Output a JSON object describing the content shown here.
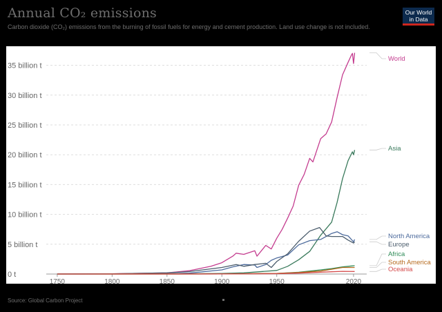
{
  "header": {
    "title": "Annual CO₂ emissions",
    "subtitle": "Carbon dioxide (CO₂) emissions from the burning of fossil fuels for energy and cement production. Land use change is not included."
  },
  "logo": {
    "line1": "Our World",
    "line2": "in Data",
    "bg_color": "#0c2a4d",
    "accent_color": "#ce261e"
  },
  "footer": {
    "source": "Source: Global Carbon Project"
  },
  "chart_data": {
    "type": "line",
    "title": "Annual CO₂ emissions",
    "xlim": [
      1740,
      2032
    ],
    "ylim": [
      0,
      37500000000
    ],
    "grid": "horizontal-dashed",
    "x_ticks": [
      1750,
      1800,
      1850,
      1900,
      1950,
      2020
    ],
    "y_ticks": [
      {
        "value": 0,
        "label": "0 t"
      },
      {
        "value": 5000000000,
        "label": "5 billion t"
      },
      {
        "value": 10000000000,
        "label": "10 billion t"
      },
      {
        "value": 15000000000,
        "label": "15 billion t"
      },
      {
        "value": 20000000000,
        "label": "20 billion t"
      },
      {
        "value": 25000000000,
        "label": "25 billion t"
      },
      {
        "value": 30000000000,
        "label": "30 billion t"
      },
      {
        "value": 35000000000,
        "label": "35 billion t"
      }
    ],
    "series": [
      {
        "name": "World",
        "color": "#c43c8f",
        "x": [
          1750,
          1800,
          1850,
          1870,
          1890,
          1900,
          1910,
          1913,
          1920,
          1930,
          1932,
          1940,
          1945,
          1950,
          1955,
          1960,
          1965,
          1970,
          1975,
          1980,
          1983,
          1990,
          1995,
          2000,
          2005,
          2010,
          2015,
          2018,
          2019,
          2020,
          2021
        ],
        "values": [
          10000000.0,
          30000000.0,
          200000000.0,
          550000000.0,
          1300000000.0,
          1900000000.0,
          3000000000.0,
          3500000000.0,
          3300000000.0,
          3900000000.0,
          3000000000.0,
          4800000000.0,
          4200000000.0,
          6000000000.0,
          7500000000.0,
          9400000000.0,
          11400000000.0,
          14900000000.0,
          16700000000.0,
          19400000000.0,
          18800000000.0,
          22700000000.0,
          23500000000.0,
          25500000000.0,
          29600000000.0,
          33400000000.0,
          35500000000.0,
          36700000000.0,
          37000000000.0,
          35300000000.0,
          37100000000.0
        ]
      },
      {
        "name": "Asia",
        "color": "#3a7a5c",
        "x": [
          1750,
          1850,
          1900,
          1920,
          1950,
          1960,
          1970,
          1980,
          1990,
          2000,
          2005,
          2010,
          2015,
          2019,
          2020,
          2021
        ],
        "values": [
          0,
          10000000.0,
          100000000.0,
          200000000.0,
          600000000.0,
          1300000000.0,
          2400000000.0,
          3800000000.0,
          6500000000.0,
          8700000000.0,
          12000000000.0,
          16000000000.0,
          19000000000.0,
          20500000000.0,
          20000000000.0,
          20800000000.0
        ]
      },
      {
        "name": "North America",
        "color": "#4c6a9c",
        "x": [
          1750,
          1850,
          1870,
          1900,
          1910,
          1920,
          1930,
          1932,
          1940,
          1945,
          1950,
          1960,
          1970,
          1980,
          1990,
          2000,
          2005,
          2010,
          2015,
          2020,
          2021
        ],
        "values": [
          0,
          50000000.0,
          150000000.0,
          700000000.0,
          1200000000.0,
          1600000000.0,
          1500000000.0,
          1100000000.0,
          1600000000.0,
          2300000000.0,
          2700000000.0,
          3200000000.0,
          4900000000.0,
          5600000000.0,
          5800000000.0,
          6800000000.0,
          7100000000.0,
          6600000000.0,
          6400000000.0,
          5400000000.0,
          5800000000.0
        ]
      },
      {
        "name": "Europe",
        "color": "#4a5b6b",
        "x": [
          1750,
          1800,
          1850,
          1870,
          1900,
          1913,
          1920,
          1930,
          1940,
          1945,
          1950,
          1960,
          1970,
          1980,
          1989,
          1995,
          2000,
          2010,
          2015,
          2020,
          2021
        ],
        "values": [
          10000000.0,
          30000000.0,
          200000000.0,
          400000000.0,
          1100000000.0,
          1600000000.0,
          1300000000.0,
          1600000000.0,
          1800000000.0,
          1100000000.0,
          2100000000.0,
          3400000000.0,
          5500000000.0,
          7200000000.0,
          7800000000.0,
          6400000000.0,
          6300000000.0,
          6300000000.0,
          5700000000.0,
          5200000000.0,
          5400000000.0
        ]
      },
      {
        "name": "Africa",
        "color": "#2e8b57",
        "x": [
          1750,
          1900,
          1950,
          1970,
          1990,
          2000,
          2010,
          2021
        ],
        "values": [
          0,
          10000000.0,
          100000000.0,
          300000000.0,
          700000000.0,
          900000000.0,
          1200000000.0,
          1400000000.0
        ]
      },
      {
        "name": "South America",
        "color": "#b66b1f",
        "x": [
          1750,
          1900,
          1950,
          1970,
          1990,
          2000,
          2010,
          2021
        ],
        "values": [
          0,
          10000000.0,
          100000000.0,
          250000000.0,
          500000000.0,
          800000000.0,
          1100000000.0,
          1100000000.0
        ]
      },
      {
        "name": "Oceania",
        "color": "#d44a4a",
        "x": [
          1750,
          1900,
          1950,
          1970,
          1990,
          2000,
          2010,
          2021
        ],
        "values": [
          0,
          10000000.0,
          60000000.0,
          150000000.0,
          300000000.0,
          380000000.0,
          450000000.0,
          430000000.0
        ]
      }
    ]
  }
}
